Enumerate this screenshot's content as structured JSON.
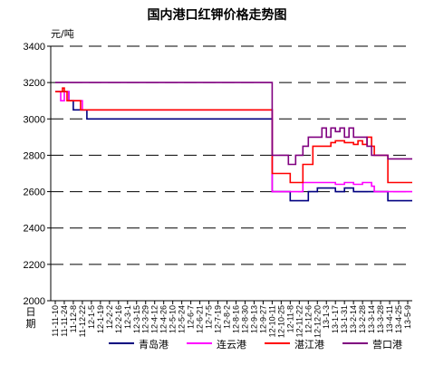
{
  "chart_data": {
    "type": "line",
    "title": "国内港口红钾价格走势图",
    "ylabel": "元/吨",
    "xlabel": "日期",
    "ylim": [
      2000,
      3400
    ],
    "yticks": [
      2000,
      2200,
      2400,
      2600,
      2800,
      3000,
      3200,
      3400
    ],
    "grid": "dashed-horizontal",
    "legend_position": "bottom",
    "x": [
      "11-11-10",
      "11-11-24",
      "11-12-8",
      "11-12-22",
      "12-1-5",
      "12-1-19",
      "12-2-2",
      "12-2-16",
      "12-3-1",
      "12-3-15",
      "12-3-29",
      "12-4-12",
      "12-4-26",
      "12-5-10",
      "12-5-24",
      "12-6-7",
      "12-6-21",
      "12-7-5",
      "12-7-19",
      "12-8-2",
      "12-8-16",
      "12-8-30",
      "12-9-13",
      "12-9-27",
      "12-10-11",
      "12-10-25",
      "12-11-8",
      "12-11-22",
      "12-12-6",
      "12-12-20",
      "13-1-3",
      "13-1-17",
      "13-1-31",
      "13-2-14",
      "13-2-28",
      "13-3-14",
      "13-3-28",
      "13-4-11",
      "13-4-25",
      "13-5-9"
    ],
    "xtick_labels": [
      "11-11-10",
      "11-11-24",
      "11-12-8",
      "11-12-22",
      "12-1-5",
      "12-1-19",
      "12-2-2",
      "12-2-16",
      "12-3-1",
      "12-3-15",
      "12-3-29",
      "12-4-12",
      "12-4-26",
      "12-5-10",
      "12-5-24",
      "12-6-7",
      "12-6-21",
      "12-7-5",
      "12-7-19",
      "12-8-2",
      "12-8-16",
      "12-8-30",
      "12-9-13",
      "12-9-27",
      "12-10-11",
      "12-10-25",
      "12-11-8",
      "12-11-22",
      "12-12-6",
      "12-12-20",
      "13-1-3",
      "13-1-17",
      "13-1-31",
      "13-2-14",
      "13-2-28",
      "13-3-14",
      "13-3-28",
      "13-4-11",
      "13-4-25",
      "13-5-9"
    ],
    "series": [
      {
        "name": "青岛港",
        "color": "#000080",
        "points": [
          [
            0,
            3150
          ],
          [
            1,
            3150
          ],
          [
            1.5,
            3100
          ],
          [
            2,
            3050
          ],
          [
            3,
            3050
          ],
          [
            3.5,
            3000
          ],
          [
            23.7,
            3000
          ],
          [
            24,
            2600
          ],
          [
            25.8,
            2600
          ],
          [
            26,
            2550
          ],
          [
            27.8,
            2550
          ],
          [
            28,
            2600
          ],
          [
            29,
            2620
          ],
          [
            31,
            2600
          ],
          [
            32,
            2620
          ],
          [
            33,
            2600
          ],
          [
            34,
            2600
          ],
          [
            35,
            2600
          ],
          [
            36.6,
            2600
          ],
          [
            36.8,
            2550
          ],
          [
            39.5,
            2550
          ]
        ]
      },
      {
        "name": "连云港",
        "color": "#ff00ff",
        "points": [
          [
            0,
            3150
          ],
          [
            0.6,
            3100
          ],
          [
            1,
            3150
          ],
          [
            1.5,
            3100
          ],
          [
            2.5,
            3100
          ],
          [
            3,
            3050
          ],
          [
            23.7,
            3050
          ],
          [
            24,
            2600
          ],
          [
            25.8,
            2600
          ],
          [
            26,
            2600
          ],
          [
            27,
            2600
          ],
          [
            27.4,
            2650
          ],
          [
            28,
            2650
          ],
          [
            29,
            2650
          ],
          [
            30,
            2650
          ],
          [
            31,
            2640
          ],
          [
            32,
            2650
          ],
          [
            33,
            2640
          ],
          [
            34,
            2650
          ],
          [
            35,
            2630
          ],
          [
            35.3,
            2600
          ],
          [
            39.5,
            2600
          ]
        ]
      },
      {
        "name": "湛江港",
        "color": "#ff0000",
        "points": [
          [
            0,
            3150
          ],
          [
            0.8,
            3170
          ],
          [
            1,
            3150
          ],
          [
            1.3,
            3100
          ],
          [
            2.5,
            3100
          ],
          [
            2.8,
            3050
          ],
          [
            23.7,
            3050
          ],
          [
            24,
            2700
          ],
          [
            25.8,
            2700
          ],
          [
            26,
            2650
          ],
          [
            27,
            2650
          ],
          [
            27.4,
            2750
          ],
          [
            28,
            2750
          ],
          [
            28.5,
            2850
          ],
          [
            30,
            2850
          ],
          [
            30.5,
            2870
          ],
          [
            31,
            2880
          ],
          [
            32,
            2870
          ],
          [
            33,
            2860
          ],
          [
            33.5,
            2880
          ],
          [
            34,
            2860
          ],
          [
            34.5,
            2900
          ],
          [
            35,
            2850
          ],
          [
            35.3,
            2800
          ],
          [
            36.6,
            2800
          ],
          [
            36.8,
            2650
          ],
          [
            39.5,
            2650
          ]
        ]
      },
      {
        "name": "营口港",
        "color": "#800080",
        "points": [
          [
            0,
            3200
          ],
          [
            23.7,
            3200
          ],
          [
            24,
            2800
          ],
          [
            25.5,
            2800
          ],
          [
            25.8,
            2750
          ],
          [
            26.3,
            2750
          ],
          [
            26.6,
            2800
          ],
          [
            27,
            2800
          ],
          [
            27.4,
            2850
          ],
          [
            28,
            2900
          ],
          [
            29,
            2900
          ],
          [
            29.5,
            2950
          ],
          [
            30,
            2900
          ],
          [
            30.5,
            2950
          ],
          [
            31,
            2930
          ],
          [
            31.5,
            2950
          ],
          [
            32,
            2900
          ],
          [
            32.5,
            2950
          ],
          [
            33,
            2900
          ],
          [
            33.5,
            2900
          ],
          [
            34,
            2900
          ],
          [
            34.5,
            2850
          ],
          [
            35,
            2800
          ],
          [
            36.6,
            2800
          ],
          [
            36.8,
            2780
          ],
          [
            39.5,
            2780
          ]
        ]
      }
    ]
  }
}
